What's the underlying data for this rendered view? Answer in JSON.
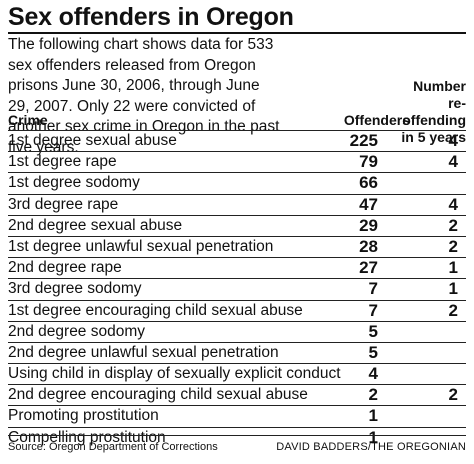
{
  "chart_data": {
    "type": "table",
    "title": "Sex offenders in Oregon",
    "intro": "The following chart shows data for 533 sex offenders released from Oregon prisons June 30, 2006, through June 29, 2007. Only 22 were convicted of another sex crime in Oregon in the past five years.",
    "columns": {
      "crime": "Crime",
      "offenders": "Offenders",
      "reoffending": "Number re-offending in 5 years"
    },
    "rows": [
      {
        "crime": "1st degree sexual abuse",
        "offenders": 225,
        "reoffending": 4
      },
      {
        "crime": "1st degree rape",
        "offenders": 79,
        "reoffending": 4
      },
      {
        "crime": "1st degree sodomy",
        "offenders": 66,
        "reoffending": null
      },
      {
        "crime": "3rd degree rape",
        "offenders": 47,
        "reoffending": 4
      },
      {
        "crime": "2nd degree sexual abuse",
        "offenders": 29,
        "reoffending": 2
      },
      {
        "crime": "1st degree unlawful sexual penetration",
        "offenders": 28,
        "reoffending": 2
      },
      {
        "crime": "2nd degree rape",
        "offenders": 27,
        "reoffending": 1
      },
      {
        "crime": "3rd degree sodomy",
        "offenders": 7,
        "reoffending": 1
      },
      {
        "crime": "1st degree encouraging child sexual abuse",
        "offenders": 7,
        "reoffending": 2
      },
      {
        "crime": "2nd degree sodomy",
        "offenders": 5,
        "reoffending": null
      },
      {
        "crime": "2nd degree unlawful sexual penetration",
        "offenders": 5,
        "reoffending": null
      },
      {
        "crime": "Using child in display of sexually explicit conduct",
        "offenders": 4,
        "reoffending": null
      },
      {
        "crime": "2nd degree encouraging child sexual abuse",
        "offenders": 2,
        "reoffending": 2
      },
      {
        "crime": "Promoting prostitution",
        "offenders": 1,
        "reoffending": null
      },
      {
        "crime": "Compelling prostitution",
        "offenders": 1,
        "reoffending": null
      }
    ],
    "source": "Source: Oregon Department of Corrections",
    "credit": "DAVID BADDERS/THE OREGONIAN"
  }
}
